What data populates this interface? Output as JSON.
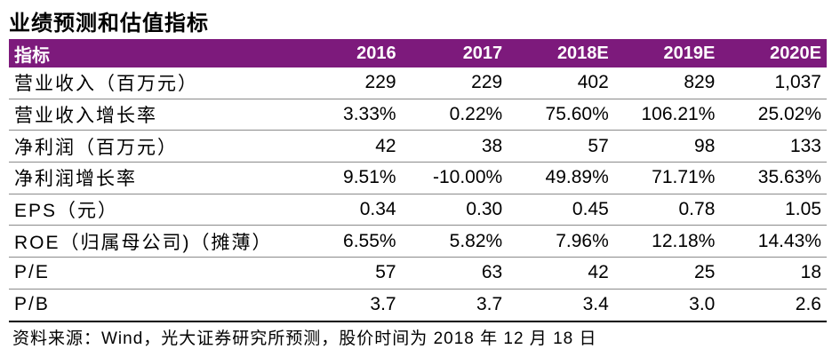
{
  "title": "业绩预测和估值指标",
  "table": {
    "header": [
      "指标",
      "2016",
      "2017",
      "2018E",
      "2019E",
      "2020E"
    ],
    "rows": [
      [
        "营业收入（百万元）",
        "229",
        "229",
        "402",
        "829",
        "1,037"
      ],
      [
        "营业收入增长率",
        "3.33%",
        "0.22%",
        "75.60%",
        "106.21%",
        "25.02%"
      ],
      [
        "净利润（百万元）",
        "42",
        "38",
        "57",
        "98",
        "133"
      ],
      [
        "净利润增长率",
        "9.51%",
        "-10.00%",
        "49.89%",
        "71.71%",
        "35.63%"
      ],
      [
        "EPS（元）",
        "0.34",
        "0.30",
        "0.45",
        "0.78",
        "1.05"
      ],
      [
        "ROE（归属母公司)（摊薄）",
        "6.55%",
        "5.82%",
        "7.96%",
        "12.18%",
        "14.43%"
      ],
      [
        "P/E",
        "57",
        "63",
        "42",
        "25",
        "18"
      ],
      [
        "P/B",
        "3.7",
        "3.7",
        "3.4",
        "3.0",
        "2.6"
      ]
    ]
  },
  "source": "资料来源：Wind，光大证券研究所预测，股价时间为 2018 年 12 月 18 日",
  "colors": {
    "header_bg": "#7d1a7c",
    "header_text": "#ffffff"
  }
}
